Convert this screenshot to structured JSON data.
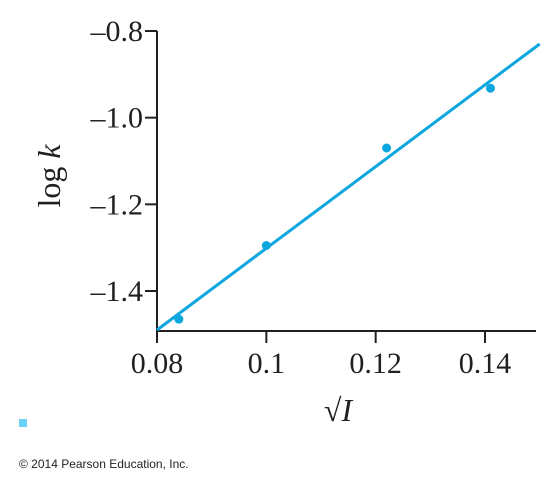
{
  "chart_data": {
    "type": "scatter",
    "title": "",
    "xlabel": "√I",
    "ylabel_prefix": "log ",
    "ylabel_var": "k",
    "xlim": [
      0.08,
      0.15
    ],
    "ylim": [
      -1.5,
      -0.8
    ],
    "x_ticks": [
      0.08,
      0.1,
      0.12,
      0.14
    ],
    "x_tick_labels": [
      "0.08",
      "0.1",
      "0.12",
      "0.14"
    ],
    "y_ticks": [
      -0.8,
      -1.0,
      -1.2,
      -1.4
    ],
    "y_tick_labels": [
      "–0.8",
      "–1.0",
      "–1.2",
      "–1.4"
    ],
    "grid": false,
    "legend": "none",
    "series": [
      {
        "x": [
          0.084,
          0.1,
          0.122,
          0.141
        ],
        "y": [
          -1.465,
          -1.295,
          -1.07,
          -0.932
        ]
      }
    ],
    "fit_line": {
      "x": [
        0.08,
        0.15
      ],
      "y": [
        -1.49,
        -0.83
      ]
    },
    "colors": {
      "points": "#0da6df",
      "line": "#0da6df",
      "axis": "#231f20",
      "mark": "#6ccff6"
    }
  },
  "footer": {
    "copyright": "© 2014 Pearson Education, Inc."
  }
}
